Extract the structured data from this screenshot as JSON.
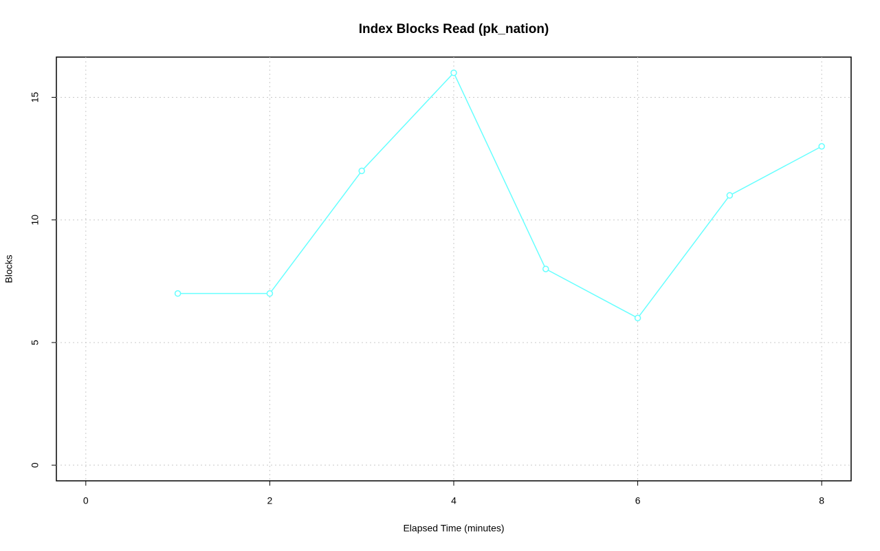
{
  "chart_data": {
    "type": "line",
    "title": "Index Blocks Read (pk_nation)",
    "x_label": "Elapsed Time (minutes)",
    "y_label": "Blocks",
    "x": [
      1,
      2,
      3,
      4,
      5,
      6,
      7,
      8
    ],
    "series": [
      {
        "color": "#66ffff",
        "values": [
          7,
          7,
          12,
          16,
          8,
          6,
          11,
          13
        ]
      }
    ],
    "xlim": [
      -0.32,
      8.32
    ],
    "xticks": [
      0,
      2,
      4,
      6,
      8
    ],
    "ylim": [
      -0.64,
      16.64
    ],
    "yticks": [
      0,
      5,
      10,
      15
    ],
    "grid": true
  }
}
